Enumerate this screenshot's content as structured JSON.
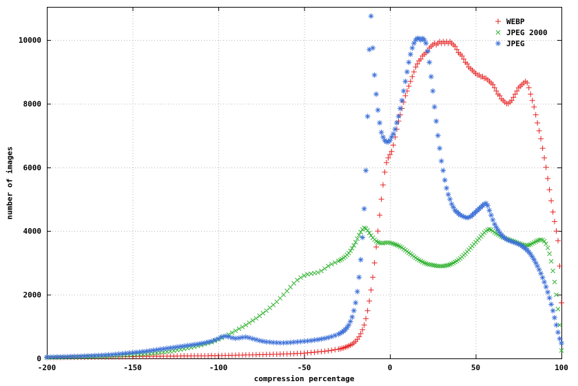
{
  "chart_data": {
    "type": "scatter",
    "title": "",
    "xlabel": "compression percentage",
    "ylabel": "number of images",
    "xlim": [
      -200,
      100
    ],
    "ylim": [
      0,
      11040
    ],
    "xticks": [
      -200,
      -150,
      -100,
      -50,
      0,
      50,
      100
    ],
    "yticks": [
      0,
      2000,
      4000,
      6000,
      8000,
      10000
    ],
    "grid": true,
    "grid_color": "#b4b4b4",
    "legend_position": "top-right",
    "background": "#ffffff",
    "series": [
      {
        "name": "WEBP",
        "color": "#e62020",
        "marker": "plus",
        "segments": [
          {
            "x_start": -200,
            "x_step": 2,
            "y": [
              30,
              30,
              30,
              35,
              30,
              35,
              35,
              40,
              35,
              40,
              40,
              40,
              45,
              40,
              45,
              45,
              50,
              45,
              50,
              50,
              55,
              50,
              55,
              55,
              60,
              55,
              60,
              60,
              65,
              60,
              65,
              65,
              70,
              65,
              70,
              70,
              75,
              70,
              75,
              75,
              80,
              75,
              80,
              80,
              85,
              80,
              85,
              85,
              90,
              85,
              90,
              90,
              95,
              95,
              100,
              100,
              105,
              105,
              110,
              110,
              115,
              115,
              120,
              120,
              125,
              125,
              130,
              130,
              135,
              140,
              140,
              145,
              150,
              155,
              160,
              165,
              175,
              185,
              195,
              205,
              215,
              225,
              240,
              255,
              275,
              290
            ]
          },
          {
            "x_start": -29,
            "x_step": 1,
            "y": [
              300,
              315,
              330,
              350,
              370,
              395,
              420,
              450,
              490,
              540,
              600,
              680,
              780,
              900,
              1050,
              1250,
              1500,
              1800,
              2150,
              2550,
              3000,
              3500,
              4000,
              4500,
              5000,
              5450,
              5850,
              6150,
              6300,
              6400,
              6500,
              6700,
              6950,
              7200,
              7450,
              7650,
              7850,
              8050,
              8250,
              8400,
              8550,
              8700,
              8850,
              9000,
              9150,
              9250,
              9350,
              9400,
              9500,
              9550,
              9600,
              9650,
              9750,
              9800,
              9850,
              9900,
              9850,
              9900,
              9950,
              9900,
              9950,
              9900,
              9950,
              9900,
              9950,
              9900,
              9850,
              9800,
              9700,
              9600,
              9550,
              9500,
              9400,
              9300,
              9250,
              9150,
              9100,
              9050,
              9000,
              8950,
              8900,
              8900,
              8850,
              8850,
              8800,
              8800,
              8750,
              8700,
              8650,
              8600,
              8500,
              8400,
              8300,
              8250,
              8150,
              8100,
              8050,
              8000,
              8000,
              8050,
              8100,
              8200,
              8300,
              8400,
              8500,
              8550,
              8600,
              8650,
              8700,
              8650,
              8500,
              8300,
              8100,
              7900,
              7650,
              7400,
              7150,
              6900,
              6600,
              6300,
              6000,
              5650,
              5300,
              4950,
              4600,
              4300,
              4000,
              3700,
              2900,
              1750
            ]
          }
        ]
      },
      {
        "name": "JPEG 2000",
        "color": "#2fb12f",
        "marker": "cross",
        "segments": [
          {
            "x_start": -200,
            "x_step": 2,
            "y": [
              25,
              25,
              30,
              30,
              30,
              35,
              35,
              40,
              40,
              45,
              45,
              50,
              50,
              55,
              55,
              60,
              60,
              65,
              70,
              75,
              80,
              85,
              90,
              95,
              100,
              110,
              115,
              120,
              130,
              140,
              150,
              160,
              170,
              185,
              195,
              210,
              225,
              240,
              260,
              280,
              300,
              320,
              345,
              370,
              395,
              420,
              450,
              480,
              510,
              555,
              600,
              650,
              700,
              750,
              810,
              870,
              930,
              990,
              1050,
              1120,
              1190,
              1260,
              1340,
              1420,
              1500,
              1590,
              1680,
              1780,
              1890,
              2000,
              2120,
              2240,
              2360,
              2460,
              2540,
              2600,
              2640,
              2660,
              2680,
              2700,
              2750,
              2820,
              2900,
              2960,
              3010,
              3060
            ]
          },
          {
            "x_start": -29,
            "x_step": 1,
            "y": [
              3090,
              3120,
              3160,
              3200,
              3250,
              3310,
              3380,
              3460,
              3550,
              3650,
              3760,
              3870,
              3970,
              4050,
              4100,
              4080,
              4020,
              3940,
              3860,
              3790,
              3730,
              3680,
              3650,
              3630,
              3620,
              3620,
              3630,
              3640,
              3640,
              3630,
              3620,
              3600,
              3580,
              3560,
              3540,
              3510,
              3480,
              3440,
              3400,
              3360,
              3320,
              3280,
              3240,
              3200,
              3160,
              3120,
              3090,
              3060,
              3030,
              3000,
              2980,
              2960,
              2950,
              2940,
              2930,
              2920,
              2910,
              2900,
              2900,
              2900,
              2900,
              2910,
              2920,
              2930,
              2950,
              2970,
              3000,
              3030,
              3060,
              3100,
              3140,
              3190,
              3240,
              3290,
              3350,
              3410,
              3470,
              3530,
              3590,
              3650,
              3710,
              3770,
              3830,
              3890,
              3950,
              4000,
              4040,
              4060,
              4040,
              4000,
              3960,
              3920,
              3890,
              3860,
              3830,
              3800,
              3780,
              3760,
              3740,
              3720,
              3700,
              3680,
              3660,
              3640,
              3620,
              3600,
              3580,
              3560,
              3550,
              3550,
              3560,
              3580,
              3610,
              3640,
              3670,
              3700,
              3720,
              3730,
              3720,
              3680,
              3600,
              3470,
              3290,
              3050,
              2750,
              2400,
              2000,
              1550,
              1050,
              250
            ]
          }
        ]
      },
      {
        "name": "JPEG",
        "color": "#3f72d8",
        "marker": "asterisk",
        "segments": [
          {
            "x_start": -200,
            "x_step": 2,
            "y": [
              40,
              45,
              45,
              50,
              50,
              55,
              55,
              60,
              65,
              65,
              70,
              75,
              80,
              85,
              90,
              95,
              100,
              105,
              115,
              120,
              130,
              140,
              150,
              160,
              170,
              180,
              190,
              200,
              215,
              225,
              240,
              255,
              270,
              285,
              300,
              315,
              330,
              345,
              360,
              375,
              390,
              405,
              420,
              435,
              450,
              470,
              490,
              515,
              540,
              580,
              620,
              680,
              700,
              680,
              650,
              630,
              640,
              660,
              670,
              650,
              620,
              590,
              560,
              540,
              520,
              510,
              500,
              495,
              490,
              490,
              495,
              500,
              510,
              520,
              530,
              540,
              550,
              560,
              575,
              590,
              610,
              630,
              655,
              685,
              720,
              760
            ]
          },
          {
            "x_start": -29,
            "x_step": 1,
            "y": [
              790,
              820,
              860,
              910,
              970,
              1050,
              1160,
              1300,
              1500,
              1750,
              2100,
              2550,
              3100,
              3800,
              4700,
              5900,
              7600,
              9700,
              10750,
              9750,
              8900,
              8300,
              7800,
              7400,
              7100,
              6950,
              6850,
              6800,
              6800,
              6850,
              6950,
              7050,
              7200,
              7400,
              7600,
              7850,
              8100,
              8400,
              8700,
              9000,
              9300,
              9550,
              9750,
              9900,
              10000,
              10050,
              10050,
              10000,
              10050,
              10000,
              9900,
              9650,
              9300,
              8850,
              8400,
              7900,
              7450,
              7000,
              6600,
              6200,
              5900,
              5600,
              5350,
              5150,
              5000,
              4850,
              4750,
              4650,
              4600,
              4550,
              4500,
              4480,
              4450,
              4430,
              4420,
              4430,
              4450,
              4500,
              4550,
              4600,
              4650,
              4700,
              4750,
              4800,
              4850,
              4870,
              4800,
              4650,
              4500,
              4350,
              4220,
              4120,
              4030,
              3950,
              3880,
              3820,
              3780,
              3740,
              3710,
              3690,
              3670,
              3650,
              3630,
              3610,
              3590,
              3560,
              3530,
              3490,
              3450,
              3400,
              3340,
              3270,
              3190,
              3100,
              3000,
              2900,
              2790,
              2670,
              2540,
              2400,
              2250,
              2080,
              1900,
              1700,
              1500,
              1280,
              1050,
              820,
              620,
              480
            ]
          }
        ]
      }
    ]
  }
}
